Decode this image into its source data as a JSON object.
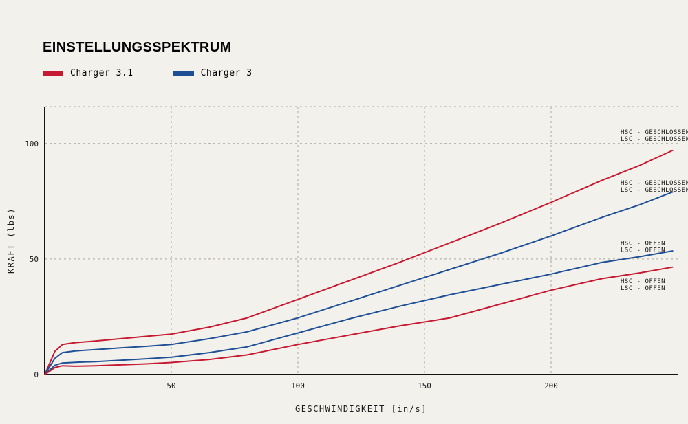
{
  "title": "EINSTELLUNGSSPEKTRUM",
  "colors": {
    "background": "#f3f1ec",
    "red": "#c61a32",
    "blue": "#1f5096",
    "grid": "#aba69c",
    "axis": "#141414",
    "text": "#1a1a1a"
  },
  "legend": [
    {
      "label": "Charger 3.1",
      "color": "#c61a32"
    },
    {
      "label": "Charger 3",
      "color": "#1f5096"
    }
  ],
  "chart_data": {
    "type": "line",
    "title": "EINSTELLUNGSSPEKTRUM",
    "xlabel": "GESCHWINDIGKEIT [in/s]",
    "ylabel": "KRAFT (lbs)",
    "xlim": [
      0,
      250
    ],
    "ylim": [
      0,
      116
    ],
    "xticks": [
      50,
      100,
      150,
      200
    ],
    "yticks": [
      0,
      50,
      100
    ],
    "grid": "dashed",
    "legend_position": "top-left",
    "series": [
      {
        "name": "Charger 3.1 - HSC/LSC geschlossen",
        "color": "#c61a32",
        "annotation": {
          "lines": [
            "HSC - GESCHLOSSEN",
            "LSC - GESCHLOSSEN"
          ],
          "y": 105
        },
        "x": [
          0,
          2,
          4,
          7,
          12,
          20,
          30,
          40,
          50,
          65,
          80,
          100,
          120,
          140,
          160,
          180,
          200,
          220,
          235,
          248
        ],
        "y": [
          0,
          5,
          10,
          13,
          13.8,
          14.5,
          15.5,
          16.5,
          17.5,
          20.5,
          24.5,
          32.5,
          40.5,
          48.5,
          57,
          65.5,
          74.5,
          84,
          90.5,
          97
        ]
      },
      {
        "name": "Charger 3 - HSC/LSC geschlossen",
        "color": "#1f5096",
        "annotation": {
          "lines": [
            "HSC - GESCHLOSSEN",
            "LSC - GESCHLOSSEN"
          ],
          "y": 83
        },
        "x": [
          0,
          2,
          4,
          7,
          12,
          20,
          30,
          40,
          50,
          65,
          80,
          100,
          120,
          140,
          160,
          180,
          200,
          220,
          235,
          248
        ],
        "y": [
          0,
          3.5,
          7,
          9.5,
          10.2,
          10.8,
          11.5,
          12.2,
          13,
          15.5,
          18.5,
          24.5,
          31.5,
          38.5,
          45.5,
          52.5,
          60,
          68,
          73.5,
          79
        ]
      },
      {
        "name": "Charger 3 - HSC/LSC offen",
        "color": "#1f5096",
        "annotation": {
          "lines": [
            "HSC - OFFEN",
            "LSC - OFFEN"
          ],
          "y": 57
        },
        "x": [
          0,
          2,
          4,
          7,
          12,
          20,
          30,
          40,
          50,
          65,
          80,
          100,
          120,
          140,
          160,
          180,
          200,
          220,
          235,
          248
        ],
        "y": [
          0,
          2,
          4,
          5,
          5.3,
          5.6,
          6.2,
          6.8,
          7.5,
          9.5,
          12,
          18,
          24,
          29.5,
          34.5,
          39,
          43.5,
          48.5,
          51,
          53.5
        ]
      },
      {
        "name": "Charger 3.1 - HSC/LSC offen",
        "color": "#c61a32",
        "annotation": {
          "lines": [
            "HSC - OFFEN",
            "LSC - OFFEN"
          ],
          "y": 40.5
        },
        "x": [
          0,
          2,
          4,
          7,
          12,
          20,
          30,
          40,
          50,
          65,
          80,
          100,
          120,
          140,
          160,
          180,
          200,
          220,
          235,
          248
        ],
        "y": [
          0,
          1.5,
          3,
          3.8,
          3.6,
          3.8,
          4.2,
          4.6,
          5.2,
          6.5,
          8.5,
          13,
          17,
          21,
          24.5,
          30.5,
          36.5,
          41.5,
          44,
          46.5
        ]
      }
    ]
  }
}
